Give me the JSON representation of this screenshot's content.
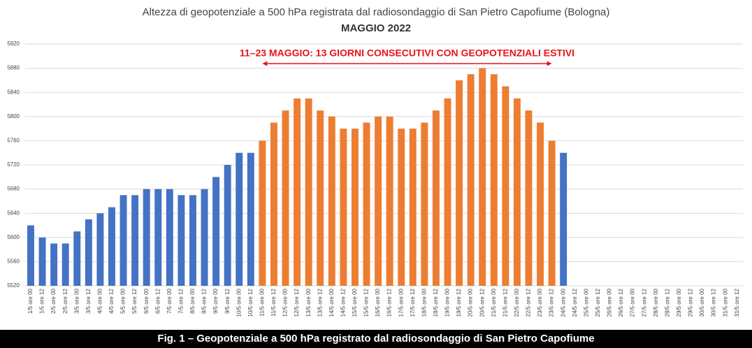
{
  "chart_data": {
    "type": "bar",
    "title": "Altezza di geopotenziale a 500 hPa registrata dal radiosondaggio di San Pietro Capofiume (Bologna)",
    "subtitle": "MAGGIO 2022",
    "annotation": "11–23 MAGGIO: 13 GIORNI CONSECUTIVI CON GEOPOTENZIALI ESTIVI",
    "caption": "Fig. 1 – Geopotenziale a 500 hPa registrato dal radiosondaggio di San Pietro Capofiume",
    "categories": [
      "1/5 ore 00",
      "1/5 ore 12",
      "2/5 ore 00",
      "2/5 ore 12",
      "3/5 ore 00",
      "3/5 ore 12",
      "4/5 ore 00",
      "4/5 ore 12",
      "5/5 ore 00",
      "5/5 ore 12",
      "6/5 ore 00",
      "6/5 ore 12",
      "7/5 ore 00",
      "7/5 ore 12",
      "8/5 ore 00",
      "8/5 ore 12",
      "9/5 ore 00",
      "9/5 ore 12",
      "10/5 ore 00",
      "10/5 ore 12",
      "11/5 ore 00",
      "11/5 ore 12",
      "12/5 ore 00",
      "12/5 ore 12",
      "13/5 ore 00",
      "13/5 ore 12",
      "14/5 ore 00",
      "14/5 ore 12",
      "15/5 ore 00",
      "15/5 ore 12",
      "16/5 ore 00",
      "16/5 ore 12",
      "17/5 ore 00",
      "17/5 ore 12",
      "18/5 ore 00",
      "18/5 ore 12",
      "19/5 ore 00",
      "19/5 ore 12",
      "20/5 ore 00",
      "20/5 ore 12",
      "21/5 ore 00",
      "21/5 ore 12",
      "22/5 ore 00",
      "22/5 ore 12",
      "23/5 ore 00",
      "23/5 ore 12",
      "24/5 ore 00",
      "24/5 ore 12",
      "25/5 ore 00",
      "25/5 ore 12",
      "26/5 ore 00",
      "26/5 ore 12",
      "27/5 ore 00",
      "27/5 ore 12",
      "28/5 ore 00",
      "28/5 ore 12",
      "29/5 ore 00",
      "29/5 ore 12",
      "30/5 ore 00",
      "30/5 ore 12",
      "31/5 ore 00",
      "31/5 ore 12"
    ],
    "series": [
      {
        "color": "#4472c4",
        "values": [
          5620,
          5600,
          5590,
          5590,
          5610,
          5630,
          5640,
          5650,
          5670,
          5670,
          5680,
          5680,
          5680,
          5670,
          5670,
          5680,
          5700,
          5720,
          5740,
          5740,
          null,
          null,
          null,
          null,
          null,
          null,
          null,
          null,
          null,
          null,
          null,
          null,
          null,
          null,
          null,
          null,
          null,
          null,
          null,
          null,
          null,
          null,
          null,
          null,
          null,
          null,
          5740,
          null,
          null,
          null,
          null,
          null,
          null,
          null,
          null,
          null,
          null,
          null,
          null,
          null,
          null,
          null
        ]
      },
      {
        "color": "#ed7d31",
        "values": [
          null,
          null,
          null,
          null,
          null,
          null,
          null,
          null,
          null,
          null,
          null,
          null,
          null,
          null,
          null,
          null,
          null,
          null,
          null,
          null,
          5760,
          5790,
          5810,
          5830,
          5830,
          5810,
          5800,
          5780,
          5780,
          5790,
          5800,
          5800,
          5780,
          5780,
          5790,
          5810,
          5830,
          5860,
          5870,
          5880,
          5870,
          5850,
          5830,
          5810,
          5790,
          5760,
          null,
          null,
          null,
          null,
          null,
          null,
          null,
          null,
          null,
          null,
          null,
          null,
          null,
          null,
          null,
          null
        ]
      }
    ],
    "ylim": [
      5520,
      5920
    ],
    "yticks": [
      5520,
      5560,
      5600,
      5640,
      5680,
      5720,
      5760,
      5800,
      5840,
      5880,
      5920
    ],
    "grid": true,
    "annotation_color": "#e8141a"
  }
}
